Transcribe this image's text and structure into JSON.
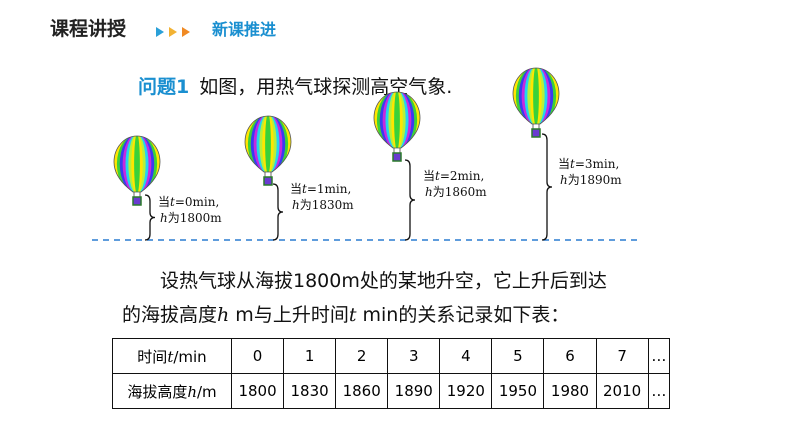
{
  "header": {
    "title": "课程讲授",
    "subtitle": "新课推进",
    "accent_color": "#1a8fd0"
  },
  "question": {
    "label": "问题1",
    "text": "如图，用热气球探测高空气象."
  },
  "balloons": [
    {
      "t_label_pre": "当",
      "t_var": "t",
      "t_label_post": "=0min,",
      "h_var": "h",
      "h_label_post": "为1800m"
    },
    {
      "t_label_pre": "当",
      "t_var": "t",
      "t_label_post": "=1min,",
      "h_var": "h",
      "h_label_post": "为1830m"
    },
    {
      "t_label_pre": "当",
      "t_var": "t",
      "t_label_post": "=2min,",
      "h_var": "h",
      "h_label_post": "为1860m"
    },
    {
      "t_label_pre": "当",
      "t_var": "t",
      "t_label_post": "=3min,",
      "h_var": "h",
      "h_label_post": "为1890m"
    }
  ],
  "paragraph": {
    "line1": "设热气球从海拔1800m处的某地升空，它上升后到达",
    "line2_a": "的海拔高度",
    "line2_h": "h",
    "line2_b": " m与上升时间",
    "line2_t": "t",
    "line2_c": " min的关系记录如下表："
  },
  "table": {
    "row1_header_a": "时间",
    "row1_header_var": "t",
    "row1_header_b": "/min",
    "row2_header_a": "海拔高度",
    "row2_header_var": "h",
    "row2_header_b": "/m",
    "t_values": [
      "0",
      "1",
      "2",
      "3",
      "4",
      "5",
      "6",
      "7",
      "…"
    ],
    "h_values": [
      "1800",
      "1830",
      "1860",
      "1890",
      "1920",
      "1950",
      "1980",
      "2010",
      "…"
    ]
  }
}
